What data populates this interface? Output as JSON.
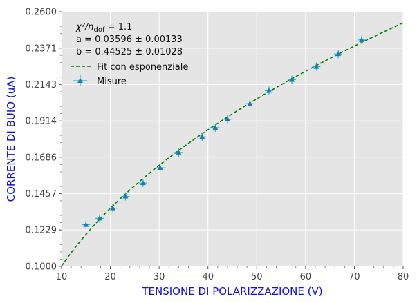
{
  "chart_data": {
    "type": "scatter",
    "xlabel": "TENSIONE DI POLARIZZAZIONE (V)",
    "ylabel": "CORRENTE DI BUIO (uA)",
    "xlim": [
      10,
      80
    ],
    "ylim": [
      0.1,
      0.26
    ],
    "x_ticks": [
      10,
      20,
      30,
      40,
      50,
      60,
      70,
      80
    ],
    "y_ticks": [
      0.1,
      0.1229,
      0.1457,
      0.1686,
      0.1914,
      0.2143,
      0.2371,
      0.26
    ],
    "y_tick_labels": [
      "0.1000",
      "0.1229",
      "0.1457",
      "0.1686",
      "0.1914",
      "0.2143",
      "0.2371",
      "0.2600"
    ],
    "grid": true,
    "legend_position": "top-left",
    "annotation": {
      "chi_label": "χ²/n",
      "chi_sub": "dof",
      "chi_value": " = 1.1",
      "param_a": "a = 0.03596 ± 0.00133",
      "param_b": "b = 0.44525 ± 0.01028"
    },
    "series": [
      {
        "name": "Fit con esponenziale",
        "kind": "line",
        "style": "dashed",
        "color": "#008000",
        "model": {
          "a": 0.03596,
          "b": 0.44525
        }
      },
      {
        "name": "Misure",
        "kind": "scatter",
        "marker": "triangle",
        "color": "#1f77b4",
        "error_color": "#17becf",
        "points": [
          {
            "x": 15.0,
            "y": 0.1262
          },
          {
            "x": 17.8,
            "y": 0.1302
          },
          {
            "x": 20.5,
            "y": 0.1366
          },
          {
            "x": 23.1,
            "y": 0.144
          },
          {
            "x": 26.7,
            "y": 0.1524
          },
          {
            "x": 30.2,
            "y": 0.162
          },
          {
            "x": 34.0,
            "y": 0.1716
          },
          {
            "x": 38.8,
            "y": 0.1814
          },
          {
            "x": 41.5,
            "y": 0.1872
          },
          {
            "x": 44.0,
            "y": 0.1925
          },
          {
            "x": 48.6,
            "y": 0.2022
          },
          {
            "x": 52.5,
            "y": 0.2104
          },
          {
            "x": 57.2,
            "y": 0.2173
          },
          {
            "x": 62.2,
            "y": 0.2255
          },
          {
            "x": 66.7,
            "y": 0.2335
          },
          {
            "x": 71.5,
            "y": 0.2423
          }
        ]
      }
    ]
  }
}
